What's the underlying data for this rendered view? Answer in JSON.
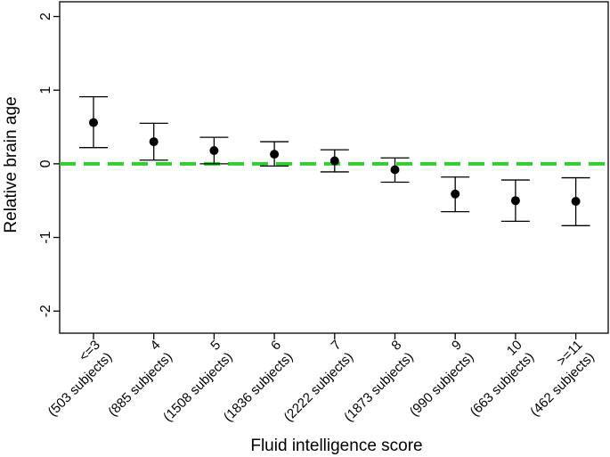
{
  "chart_data": {
    "type": "scatter",
    "xlabel": "Fluid intelligence score",
    "ylabel": "Relative brain age",
    "ylim": [
      -2.3,
      2.2
    ],
    "yticks": [
      2,
      1,
      0,
      -1,
      -2
    ],
    "reference_line": {
      "y": 0,
      "style": "dashed",
      "color": "#33cc33"
    },
    "categories": [
      {
        "label": "<=3",
        "subjects": "(503 subjects)",
        "mean": 0.56,
        "lower": 0.22,
        "upper": 0.91
      },
      {
        "label": "4",
        "subjects": "(885 subjects)",
        "mean": 0.3,
        "lower": 0.05,
        "upper": 0.55
      },
      {
        "label": "5",
        "subjects": "(1508 subjects)",
        "mean": 0.18,
        "lower": 0.0,
        "upper": 0.36
      },
      {
        "label": "6",
        "subjects": "(1836 subjects)",
        "mean": 0.13,
        "lower": -0.03,
        "upper": 0.3
      },
      {
        "label": "7",
        "subjects": "(2222 subjects)",
        "mean": 0.04,
        "lower": -0.11,
        "upper": 0.19
      },
      {
        "label": "8",
        "subjects": "(1873 subjects)",
        "mean": -0.08,
        "lower": -0.25,
        "upper": 0.08
      },
      {
        "label": "9",
        "subjects": "(990 subjects)",
        "mean": -0.41,
        "lower": -0.65,
        "upper": -0.18
      },
      {
        "label": "10",
        "subjects": "(663 subjects)",
        "mean": -0.5,
        "lower": -0.78,
        "upper": -0.22
      },
      {
        "label": ">=11",
        "subjects": "(462 subjects)",
        "mean": -0.51,
        "lower": -0.84,
        "upper": -0.19
      }
    ],
    "grid": false,
    "legend": "none"
  }
}
